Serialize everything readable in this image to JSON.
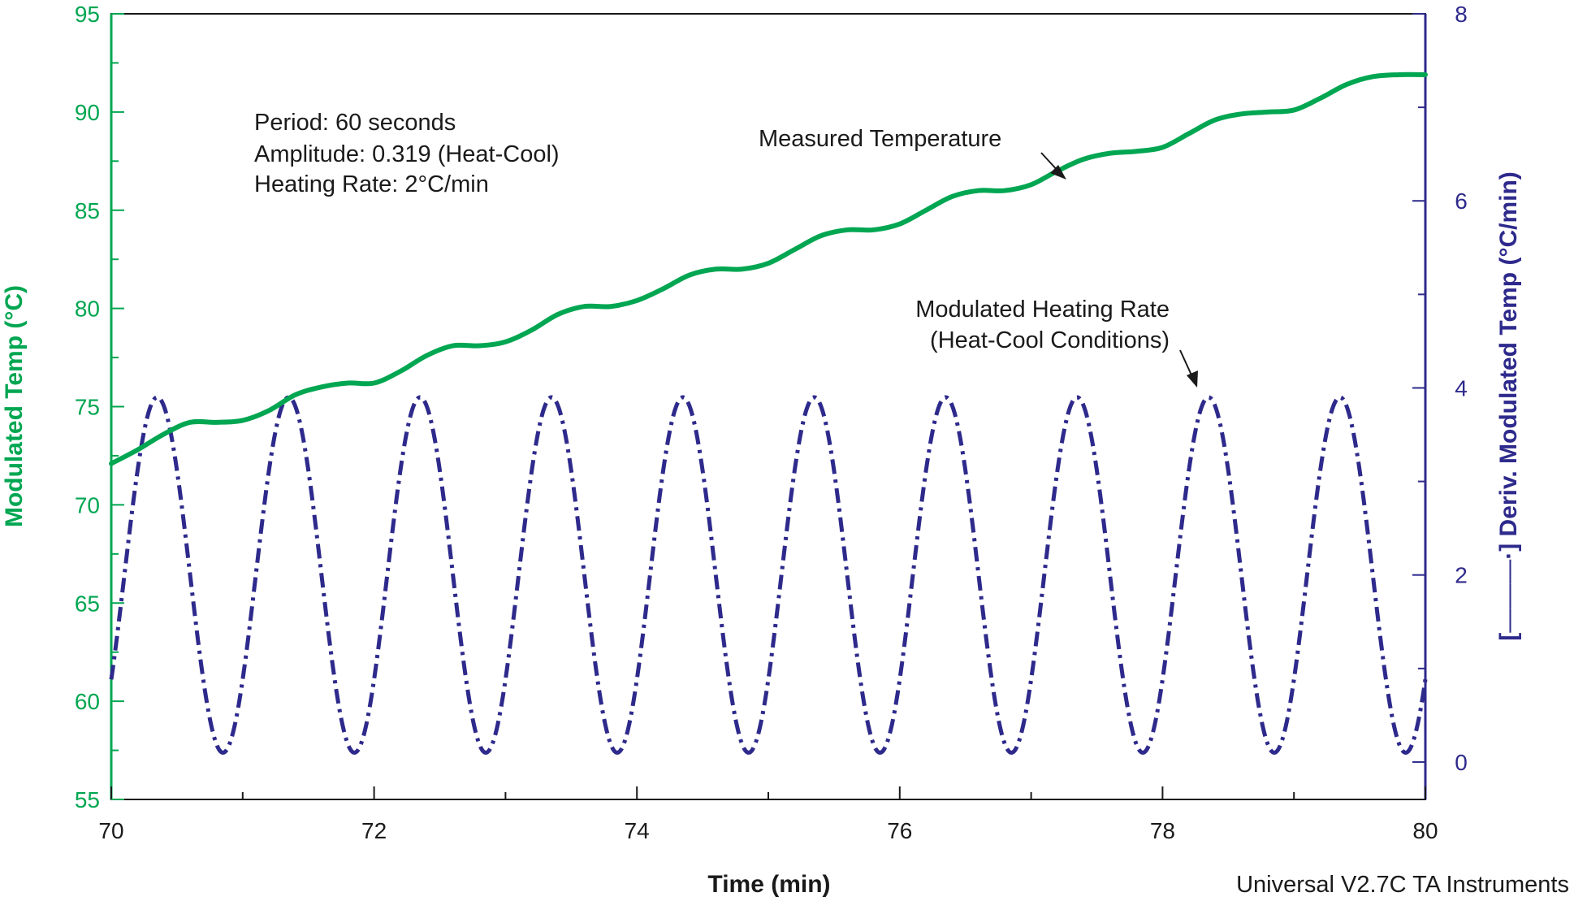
{
  "chart_data": {
    "type": "line",
    "title": "",
    "xlabel": "Time (min)",
    "ylabel_left": "Modulated Temp (°C)",
    "ylabel_right_prefix": "[",
    "ylabel_right_dashes": "———",
    "ylabel_right_suffix": "·] Deriv. Modulated Temp (°C/min)",
    "xlim": [
      70,
      80
    ],
    "ylim_left": [
      55,
      95
    ],
    "ylim_right": [
      -0.4,
      8
    ],
    "x_ticks": [
      "70",
      "72",
      "74",
      "76",
      "78",
      "80"
    ],
    "y_left_ticks": [
      "55",
      "60",
      "65",
      "70",
      "75",
      "80",
      "85",
      "90",
      "95"
    ],
    "y_right_ticks": [
      "0",
      "2",
      "4",
      "6",
      "8"
    ],
    "grid": false,
    "colors": {
      "measured": "#00a651",
      "rate": "#2e2a8c",
      "frame": "#1a1a1a"
    },
    "annotations": [
      "Period: 60 seconds",
      "Amplitude: 0.319 (Heat-Cool)",
      "Heating Rate: 2°C/min",
      "Measured Temperature",
      "Modulated Heating Rate",
      "(Heat-Cool Conditions)"
    ],
    "footer": "Universal V2.7C TA Instruments",
    "series": [
      {
        "name": "Measured Temperature",
        "axis": "left",
        "style": "solid",
        "x": [
          70.0,
          70.2,
          70.4,
          70.6,
          70.8,
          71.0,
          71.2,
          71.4,
          71.6,
          71.8,
          72.0,
          72.2,
          72.4,
          72.6,
          72.8,
          73.0,
          73.2,
          73.4,
          73.6,
          73.8,
          74.0,
          74.2,
          74.4,
          74.6,
          74.8,
          75.0,
          75.2,
          75.4,
          75.6,
          75.8,
          76.0,
          76.2,
          76.4,
          76.6,
          76.8,
          77.0,
          77.2,
          77.4,
          77.6,
          77.8,
          78.0,
          78.2,
          78.4,
          78.6,
          78.8,
          79.0,
          79.2,
          79.4,
          79.6,
          79.8,
          80.0
        ],
        "values": [
          72.1,
          72.8,
          73.6,
          74.2,
          74.2,
          74.3,
          74.8,
          75.6,
          76.0,
          76.2,
          76.2,
          76.8,
          77.6,
          78.1,
          78.1,
          78.3,
          78.9,
          79.7,
          80.1,
          80.1,
          80.4,
          81.0,
          81.7,
          82.0,
          82.0,
          82.3,
          83.0,
          83.7,
          84.0,
          84.0,
          84.3,
          85.0,
          85.7,
          86.0,
          86.0,
          86.3,
          87.0,
          87.6,
          87.9,
          88.0,
          88.2,
          88.9,
          89.6,
          89.9,
          90.0,
          90.1,
          90.7,
          91.4,
          91.8,
          91.9,
          91.9
        ]
      },
      {
        "name": "Modulated Heating Rate (Heat-Cool Conditions)",
        "axis": "right",
        "style": "dash-dot",
        "function": "2 + 1.9*cos(2*pi*(t - 70.35))",
        "period_min": 1.0,
        "mean": 2.0,
        "amplitude": 1.9,
        "peak_times": [
          70.35,
          71.35,
          72.35,
          73.35,
          74.35,
          75.35,
          76.35,
          77.35,
          78.35,
          79.35
        ],
        "peak_value": 3.9,
        "trough_times": [
          70.85,
          71.85,
          72.85,
          73.85,
          74.85,
          75.85,
          76.85,
          77.85,
          78.85,
          79.85
        ],
        "trough_value": 0.1
      }
    ]
  }
}
